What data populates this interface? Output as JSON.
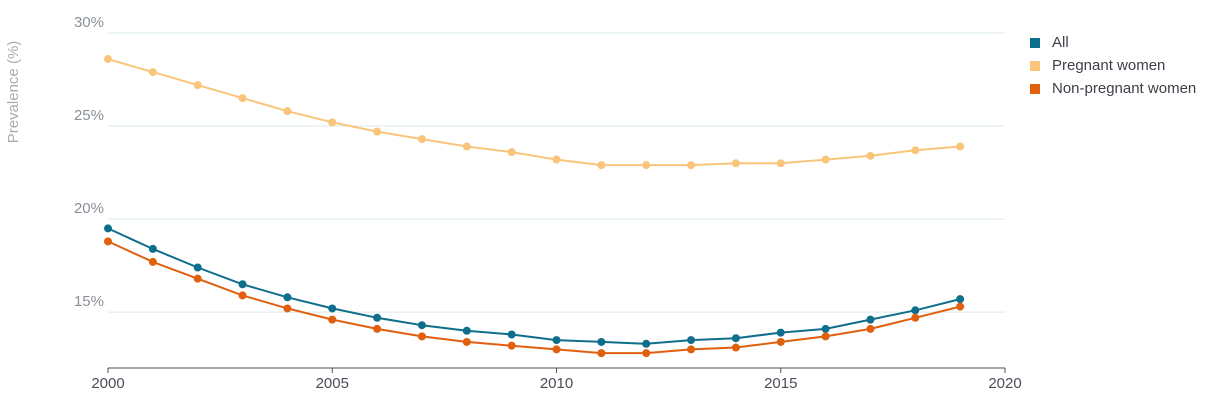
{
  "chart_data": {
    "type": "line",
    "ylabel": "Prevalence (%)",
    "xlabel": "",
    "x": [
      2000,
      2001,
      2002,
      2003,
      2004,
      2005,
      2006,
      2007,
      2008,
      2009,
      2010,
      2011,
      2012,
      2013,
      2014,
      2015,
      2016,
      2017,
      2018,
      2019
    ],
    "xlim": [
      2000,
      2020
    ],
    "ylim": [
      12,
      30
    ],
    "x_ticks": [
      2000,
      2005,
      2010,
      2015,
      2020
    ],
    "x_tick_labels": [
      "2000",
      "2005",
      "2010",
      "2015",
      "2020"
    ],
    "y_ticks": [
      15,
      20,
      25,
      30
    ],
    "y_tick_labels": [
      "15%",
      "20%",
      "25%",
      "30%"
    ],
    "grid": "horizontal",
    "legend_position": "top-right",
    "series": [
      {
        "name": "All",
        "color": "#0f6e8c",
        "values": [
          19.5,
          18.4,
          17.4,
          16.5,
          15.8,
          15.2,
          14.7,
          14.3,
          14.0,
          13.8,
          13.5,
          13.4,
          13.3,
          13.5,
          13.6,
          13.9,
          14.1,
          14.6,
          15.1,
          15.7
        ]
      },
      {
        "name": "Pregnant women",
        "color": "#f9c57a",
        "values": [
          28.6,
          27.9,
          27.2,
          26.5,
          25.8,
          25.2,
          24.7,
          24.3,
          23.9,
          23.6,
          23.2,
          22.9,
          22.9,
          22.9,
          23.0,
          23.0,
          23.2,
          23.4,
          23.7,
          23.9
        ]
      },
      {
        "name": "Non-pregnant women",
        "color": "#e0600f",
        "values": [
          18.8,
          17.7,
          16.8,
          15.9,
          15.2,
          14.6,
          14.1,
          13.7,
          13.4,
          13.2,
          13.0,
          12.8,
          12.8,
          13.0,
          13.1,
          13.4,
          13.7,
          14.1,
          14.7,
          15.3
        ]
      }
    ]
  }
}
